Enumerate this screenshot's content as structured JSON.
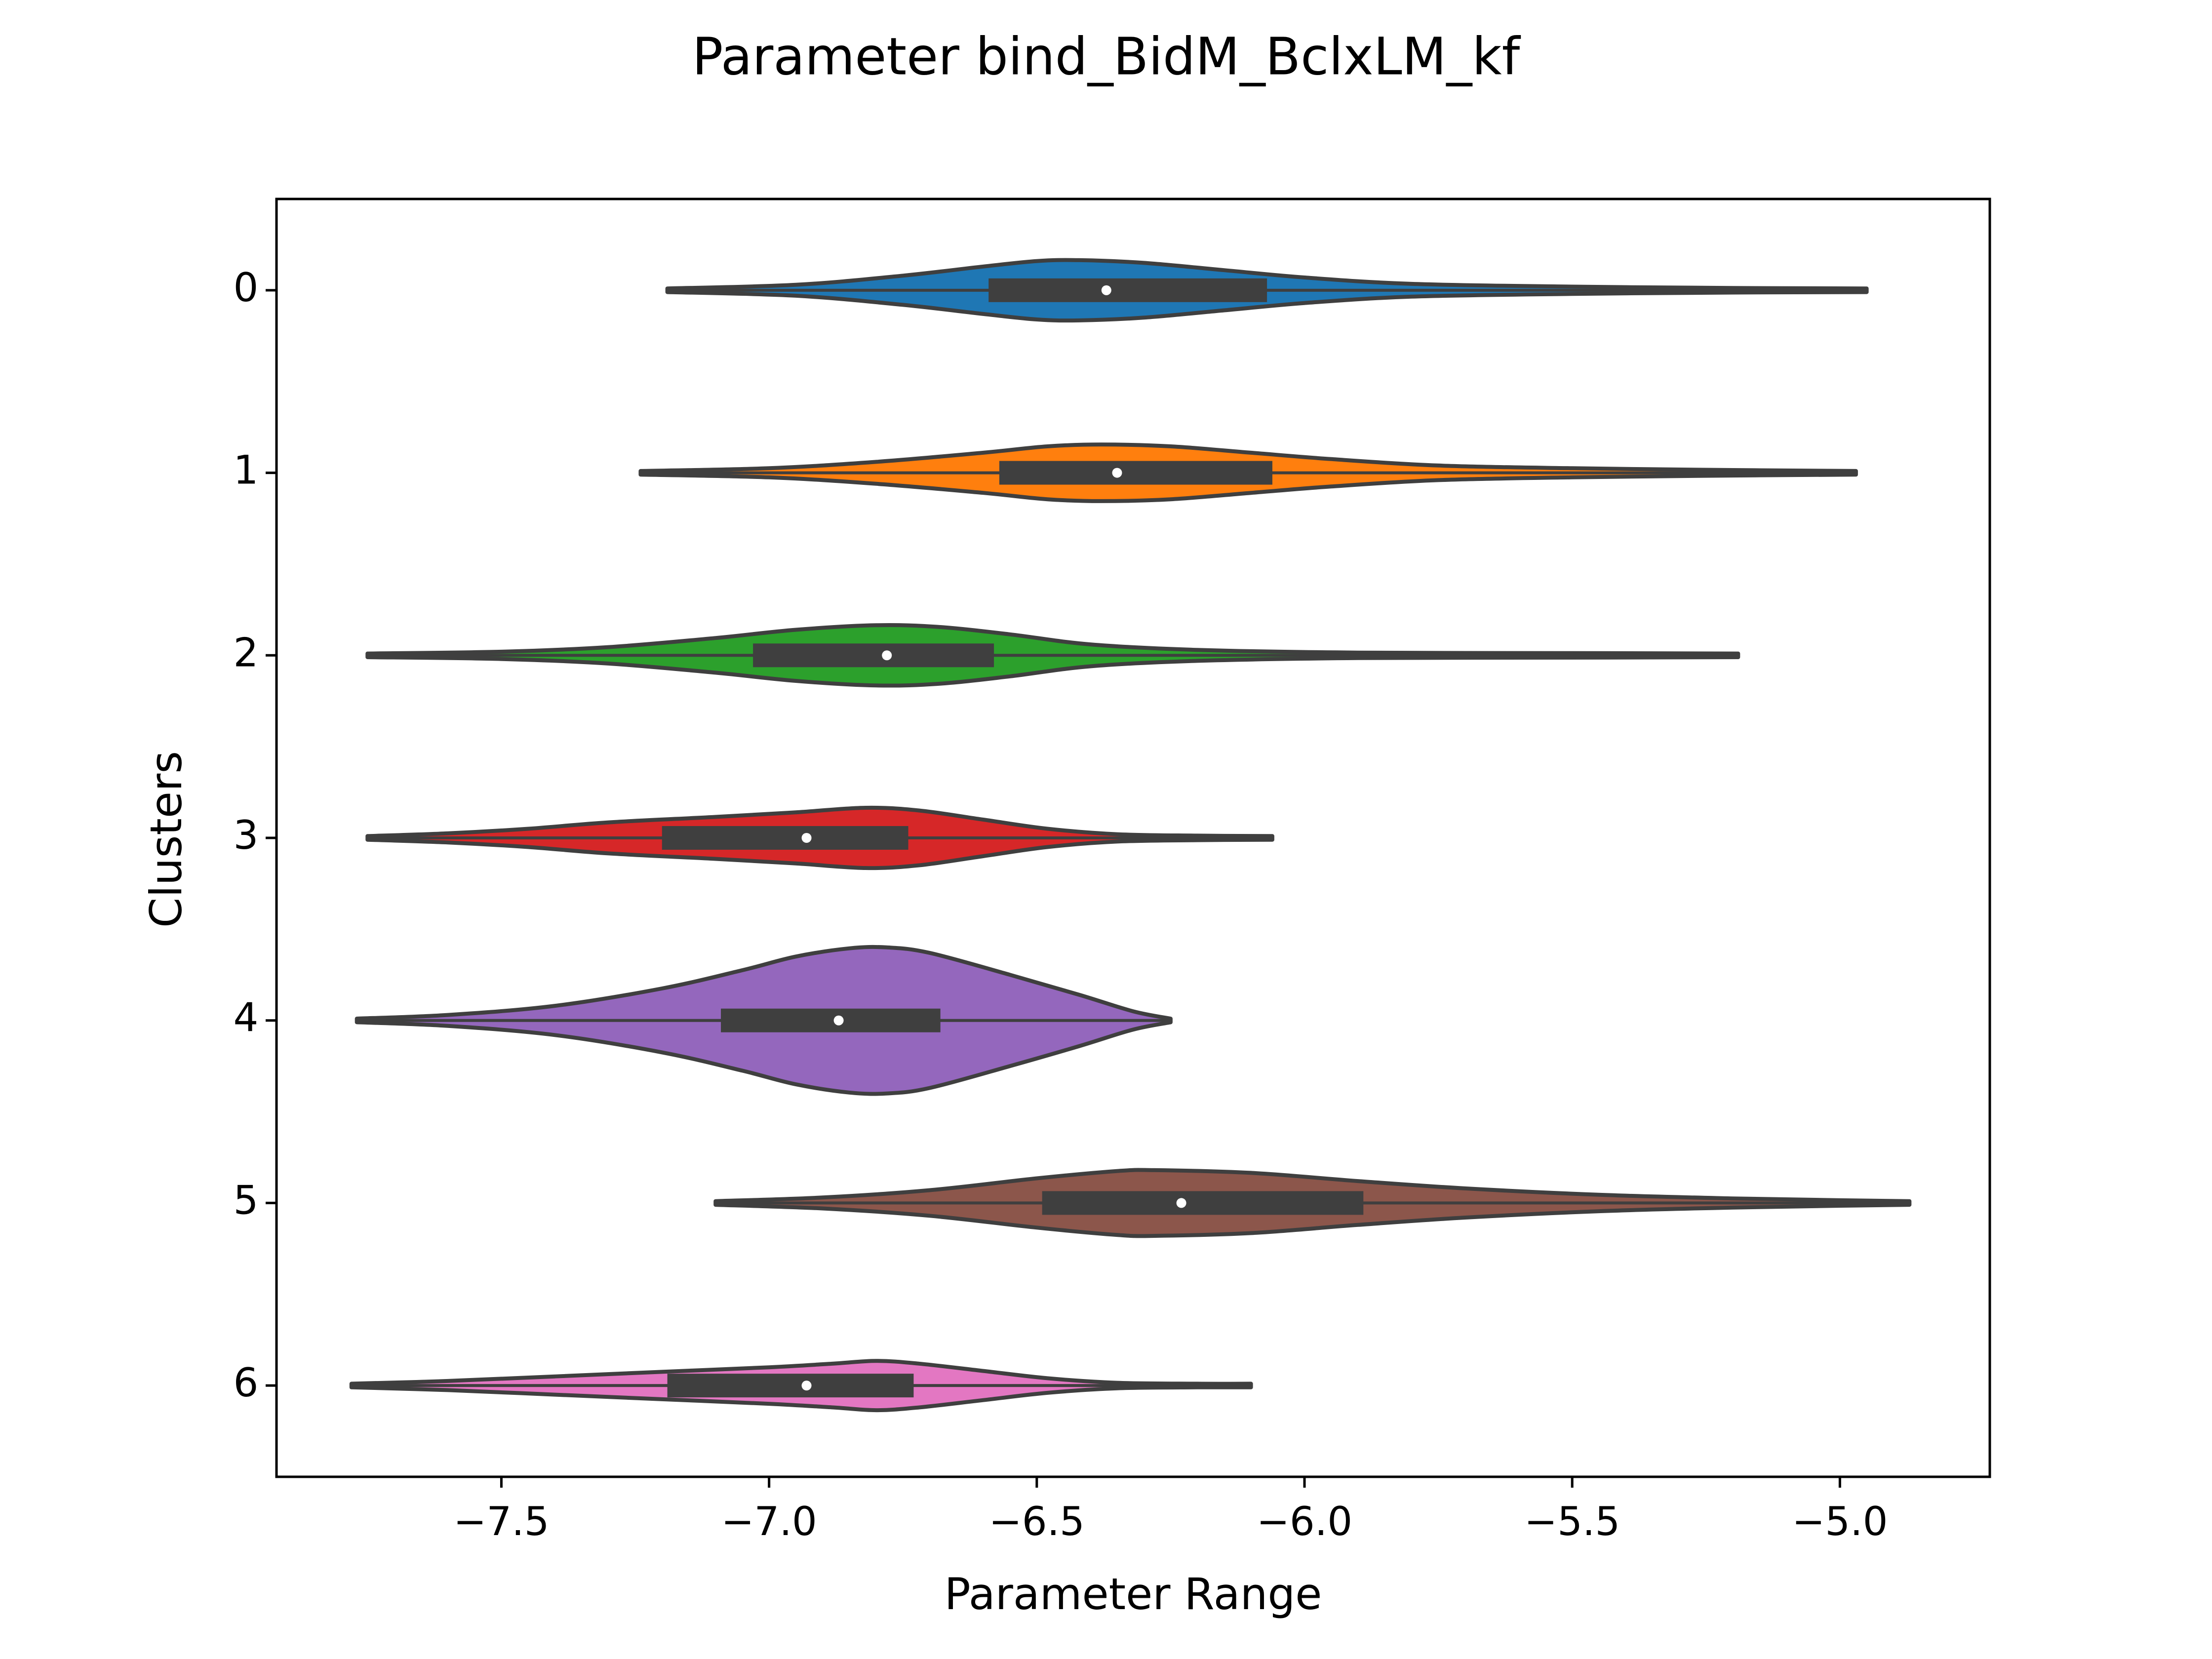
{
  "chart_data": {
    "type": "violin",
    "orientation": "horizontal",
    "title": "Parameter bind_BidM_BclxLM_kf",
    "xlabel": "Parameter Range",
    "ylabel": "Clusters",
    "xlim": [
      -7.92,
      -4.72
    ],
    "xticks": [
      -7.5,
      -7.0,
      -6.5,
      -6.0,
      -5.5,
      -5.0
    ],
    "xtick_labels": [
      "−7.5",
      "−7.0",
      "−6.5",
      "−6.0",
      "−5.5",
      "−5.0"
    ],
    "categories": [
      "0",
      "1",
      "2",
      "3",
      "4",
      "5",
      "6"
    ],
    "grid": false,
    "series": [
      {
        "category": "0",
        "color": "#1f77b4",
        "min": -7.19,
        "max": -4.95,
        "q1": -6.59,
        "median": -6.37,
        "q3": -6.07,
        "density": [
          [
            -7.19,
            0.02
          ],
          [
            -6.95,
            0.06
          ],
          [
            -6.75,
            0.16
          ],
          [
            -6.6,
            0.26
          ],
          [
            -6.5,
            0.32
          ],
          [
            -6.42,
            0.33
          ],
          [
            -6.3,
            0.3
          ],
          [
            -6.15,
            0.22
          ],
          [
            -6.0,
            0.14
          ],
          [
            -5.8,
            0.07
          ],
          [
            -5.5,
            0.04
          ],
          [
            -5.2,
            0.025
          ],
          [
            -4.95,
            0.02
          ]
        ]
      },
      {
        "category": "1",
        "color": "#ff7f0e",
        "min": -7.24,
        "max": -4.97,
        "q1": -6.57,
        "median": -6.35,
        "q3": -6.06,
        "density": [
          [
            -7.24,
            0.02
          ],
          [
            -7.0,
            0.05
          ],
          [
            -6.8,
            0.12
          ],
          [
            -6.6,
            0.22
          ],
          [
            -6.48,
            0.29
          ],
          [
            -6.38,
            0.31
          ],
          [
            -6.25,
            0.29
          ],
          [
            -6.1,
            0.22
          ],
          [
            -5.95,
            0.15
          ],
          [
            -5.75,
            0.08
          ],
          [
            -5.5,
            0.05
          ],
          [
            -5.2,
            0.03
          ],
          [
            -4.97,
            0.02
          ]
        ]
      },
      {
        "category": "2",
        "color": "#2ca02c",
        "min": -7.75,
        "max": -5.19,
        "q1": -7.03,
        "median": -6.78,
        "q3": -6.58,
        "density": [
          [
            -7.75,
            0.02
          ],
          [
            -7.5,
            0.04
          ],
          [
            -7.3,
            0.09
          ],
          [
            -7.1,
            0.19
          ],
          [
            -6.95,
            0.28
          ],
          [
            -6.8,
            0.33
          ],
          [
            -6.68,
            0.31
          ],
          [
            -6.55,
            0.23
          ],
          [
            -6.4,
            0.12
          ],
          [
            -6.2,
            0.06
          ],
          [
            -5.9,
            0.03
          ],
          [
            -5.5,
            0.025
          ],
          [
            -5.19,
            0.02
          ]
        ]
      },
      {
        "category": "3",
        "color": "#d62728",
        "min": -7.75,
        "max": -6.06,
        "q1": -7.2,
        "median": -6.93,
        "q3": -6.74,
        "density": [
          [
            -7.75,
            0.02
          ],
          [
            -7.6,
            0.05
          ],
          [
            -7.45,
            0.1
          ],
          [
            -7.3,
            0.17
          ],
          [
            -7.1,
            0.23
          ],
          [
            -6.95,
            0.28
          ],
          [
            -6.82,
            0.33
          ],
          [
            -6.72,
            0.3
          ],
          [
            -6.6,
            0.2
          ],
          [
            -6.48,
            0.1
          ],
          [
            -6.35,
            0.04
          ],
          [
            -6.2,
            0.025
          ],
          [
            -6.06,
            0.02
          ]
        ]
      },
      {
        "category": "4",
        "color": "#9467bd",
        "min": -7.77,
        "max": -6.25,
        "q1": -7.09,
        "median": -6.87,
        "q3": -6.68,
        "density": [
          [
            -7.77,
            0.02
          ],
          [
            -7.6,
            0.06
          ],
          [
            -7.4,
            0.16
          ],
          [
            -7.2,
            0.35
          ],
          [
            -7.05,
            0.55
          ],
          [
            -6.95,
            0.7
          ],
          [
            -6.85,
            0.79
          ],
          [
            -6.78,
            0.8
          ],
          [
            -6.7,
            0.74
          ],
          [
            -6.55,
            0.5
          ],
          [
            -6.42,
            0.28
          ],
          [
            -6.32,
            0.1
          ],
          [
            -6.25,
            0.02
          ]
        ]
      },
      {
        "category": "5",
        "color": "#8c564b",
        "min": -7.1,
        "max": -4.87,
        "q1": -6.49,
        "median": -6.23,
        "q3": -5.89,
        "density": [
          [
            -7.1,
            0.02
          ],
          [
            -6.9,
            0.06
          ],
          [
            -6.7,
            0.14
          ],
          [
            -6.5,
            0.27
          ],
          [
            -6.35,
            0.35
          ],
          [
            -6.28,
            0.36
          ],
          [
            -6.1,
            0.33
          ],
          [
            -5.9,
            0.24
          ],
          [
            -5.7,
            0.16
          ],
          [
            -5.45,
            0.09
          ],
          [
            -5.2,
            0.05
          ],
          [
            -5.0,
            0.03
          ],
          [
            -4.87,
            0.02
          ]
        ]
      },
      {
        "category": "6",
        "color": "#e377c2",
        "min": -7.78,
        "max": -6.1,
        "q1": -7.19,
        "median": -6.93,
        "q3": -6.73,
        "density": [
          [
            -7.78,
            0.02
          ],
          [
            -7.6,
            0.05
          ],
          [
            -7.4,
            0.1
          ],
          [
            -7.2,
            0.15
          ],
          [
            -7.0,
            0.2
          ],
          [
            -6.88,
            0.24
          ],
          [
            -6.8,
            0.27
          ],
          [
            -6.72,
            0.24
          ],
          [
            -6.6,
            0.16
          ],
          [
            -6.48,
            0.08
          ],
          [
            -6.35,
            0.03
          ],
          [
            -6.2,
            0.02
          ],
          [
            -6.1,
            0.02
          ]
        ]
      }
    ]
  }
}
